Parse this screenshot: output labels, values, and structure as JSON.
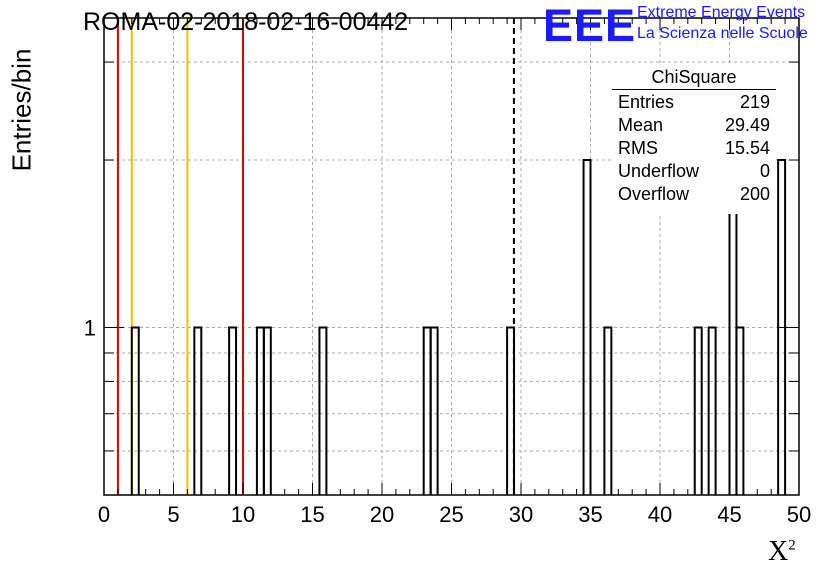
{
  "title": "ROMA-02-2018-02-16-00442",
  "logo": {
    "letters": "EEE",
    "line1": "Extreme Energy Events",
    "line2": "La Scienza nelle Scuole",
    "color": "#1a1aff"
  },
  "stats": {
    "name": "ChiSquare",
    "rows": [
      {
        "label": "Entries",
        "value": "219"
      },
      {
        "label": "Mean",
        "value": "29.49"
      },
      {
        "label": "RMS",
        "value": "15.54"
      },
      {
        "label": "Underflow",
        "value": "0"
      },
      {
        "label": "Overflow",
        "value": "200"
      }
    ]
  },
  "chart_data": {
    "type": "bar",
    "title": "ROMA-02-2018-02-16-00442",
    "xlabel": "X",
    "xlabel_superscript": "2",
    "ylabel": "Entries/bin",
    "xlim": [
      0,
      50
    ],
    "ylim": [
      0.5,
      3.6
    ],
    "yscale": "log",
    "grid": true,
    "xticks": [
      "0",
      "5",
      "10",
      "15",
      "20",
      "25",
      "30",
      "35",
      "40",
      "45",
      "50"
    ],
    "yticks": [
      "1"
    ],
    "bin_width": 0.5,
    "bins": [
      {
        "x0": 2.0,
        "count": 1
      },
      {
        "x0": 6.5,
        "count": 1
      },
      {
        "x0": 9.0,
        "count": 1
      },
      {
        "x0": 11.0,
        "count": 1
      },
      {
        "x0": 11.5,
        "count": 1
      },
      {
        "x0": 15.5,
        "count": 1
      },
      {
        "x0": 23.0,
        "count": 1
      },
      {
        "x0": 23.5,
        "count": 1
      },
      {
        "x0": 29.0,
        "count": 1
      },
      {
        "x0": 34.5,
        "count": 2
      },
      {
        "x0": 36.0,
        "count": 1
      },
      {
        "x0": 42.5,
        "count": 1
      },
      {
        "x0": 43.5,
        "count": 1
      },
      {
        "x0": 45.0,
        "count": 2
      },
      {
        "x0": 45.5,
        "count": 1
      },
      {
        "x0": 48.5,
        "count": 2
      }
    ],
    "vertical_lines": [
      {
        "x": 1.0,
        "color": "#e00000",
        "style": "solid"
      },
      {
        "x": 2.0,
        "color": "#f0c000",
        "style": "solid"
      },
      {
        "x": 6.0,
        "color": "#f0c000",
        "style": "solid"
      },
      {
        "x": 10.0,
        "color": "#e00000",
        "style": "solid"
      },
      {
        "x": 29.49,
        "color": "#000000",
        "style": "dashed"
      }
    ]
  }
}
